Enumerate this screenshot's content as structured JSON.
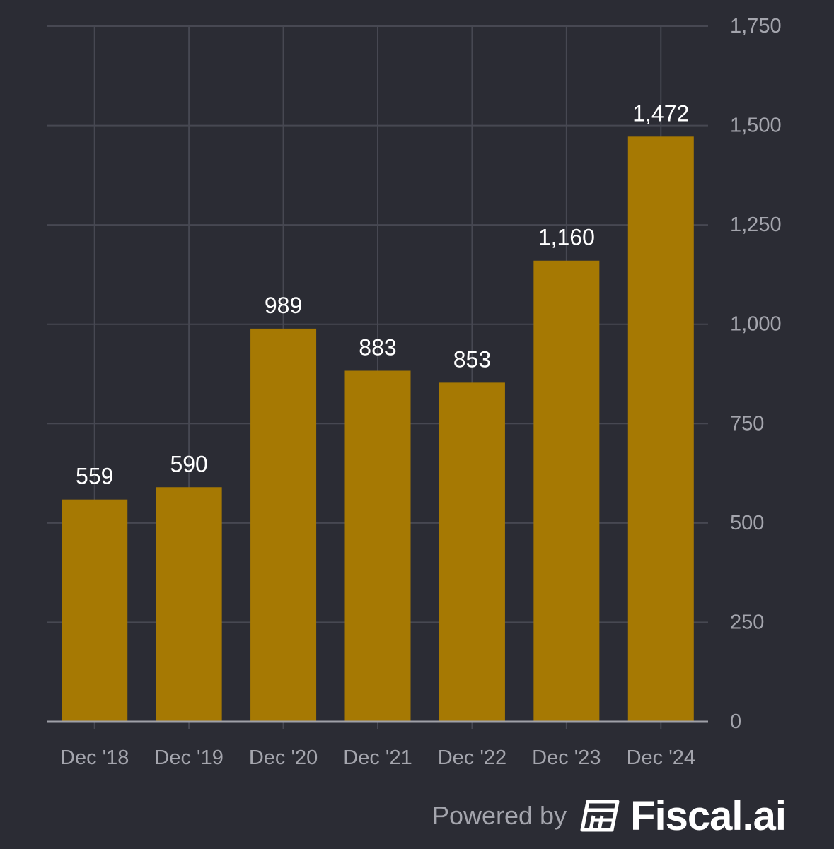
{
  "chart_data": {
    "type": "bar",
    "categories": [
      "Dec '18",
      "Dec '19",
      "Dec '20",
      "Dec '21",
      "Dec '22",
      "Dec '23",
      "Dec '24"
    ],
    "values": [
      559,
      590,
      989,
      883,
      853,
      1160,
      1472
    ],
    "value_labels": [
      "559",
      "590",
      "989",
      "883",
      "853",
      "1,160",
      "1,472"
    ],
    "y_ticks": [
      0,
      250,
      500,
      750,
      1000,
      1250,
      1500,
      1750
    ],
    "y_tick_labels": [
      "0",
      "250",
      "500",
      "750",
      "1,000",
      "1,250",
      "1,500",
      "1,750"
    ],
    "ylim": [
      0,
      1750
    ],
    "y_axis_side": "right",
    "grid": true,
    "bar_color": "#a67903",
    "background_color": "#2b2c34",
    "grid_color": "#474852"
  },
  "footer": {
    "powered_label": "Powered by",
    "brand_name": "Fiscal.ai",
    "brand_icon": "fiscal-ai-logo-icon"
  }
}
